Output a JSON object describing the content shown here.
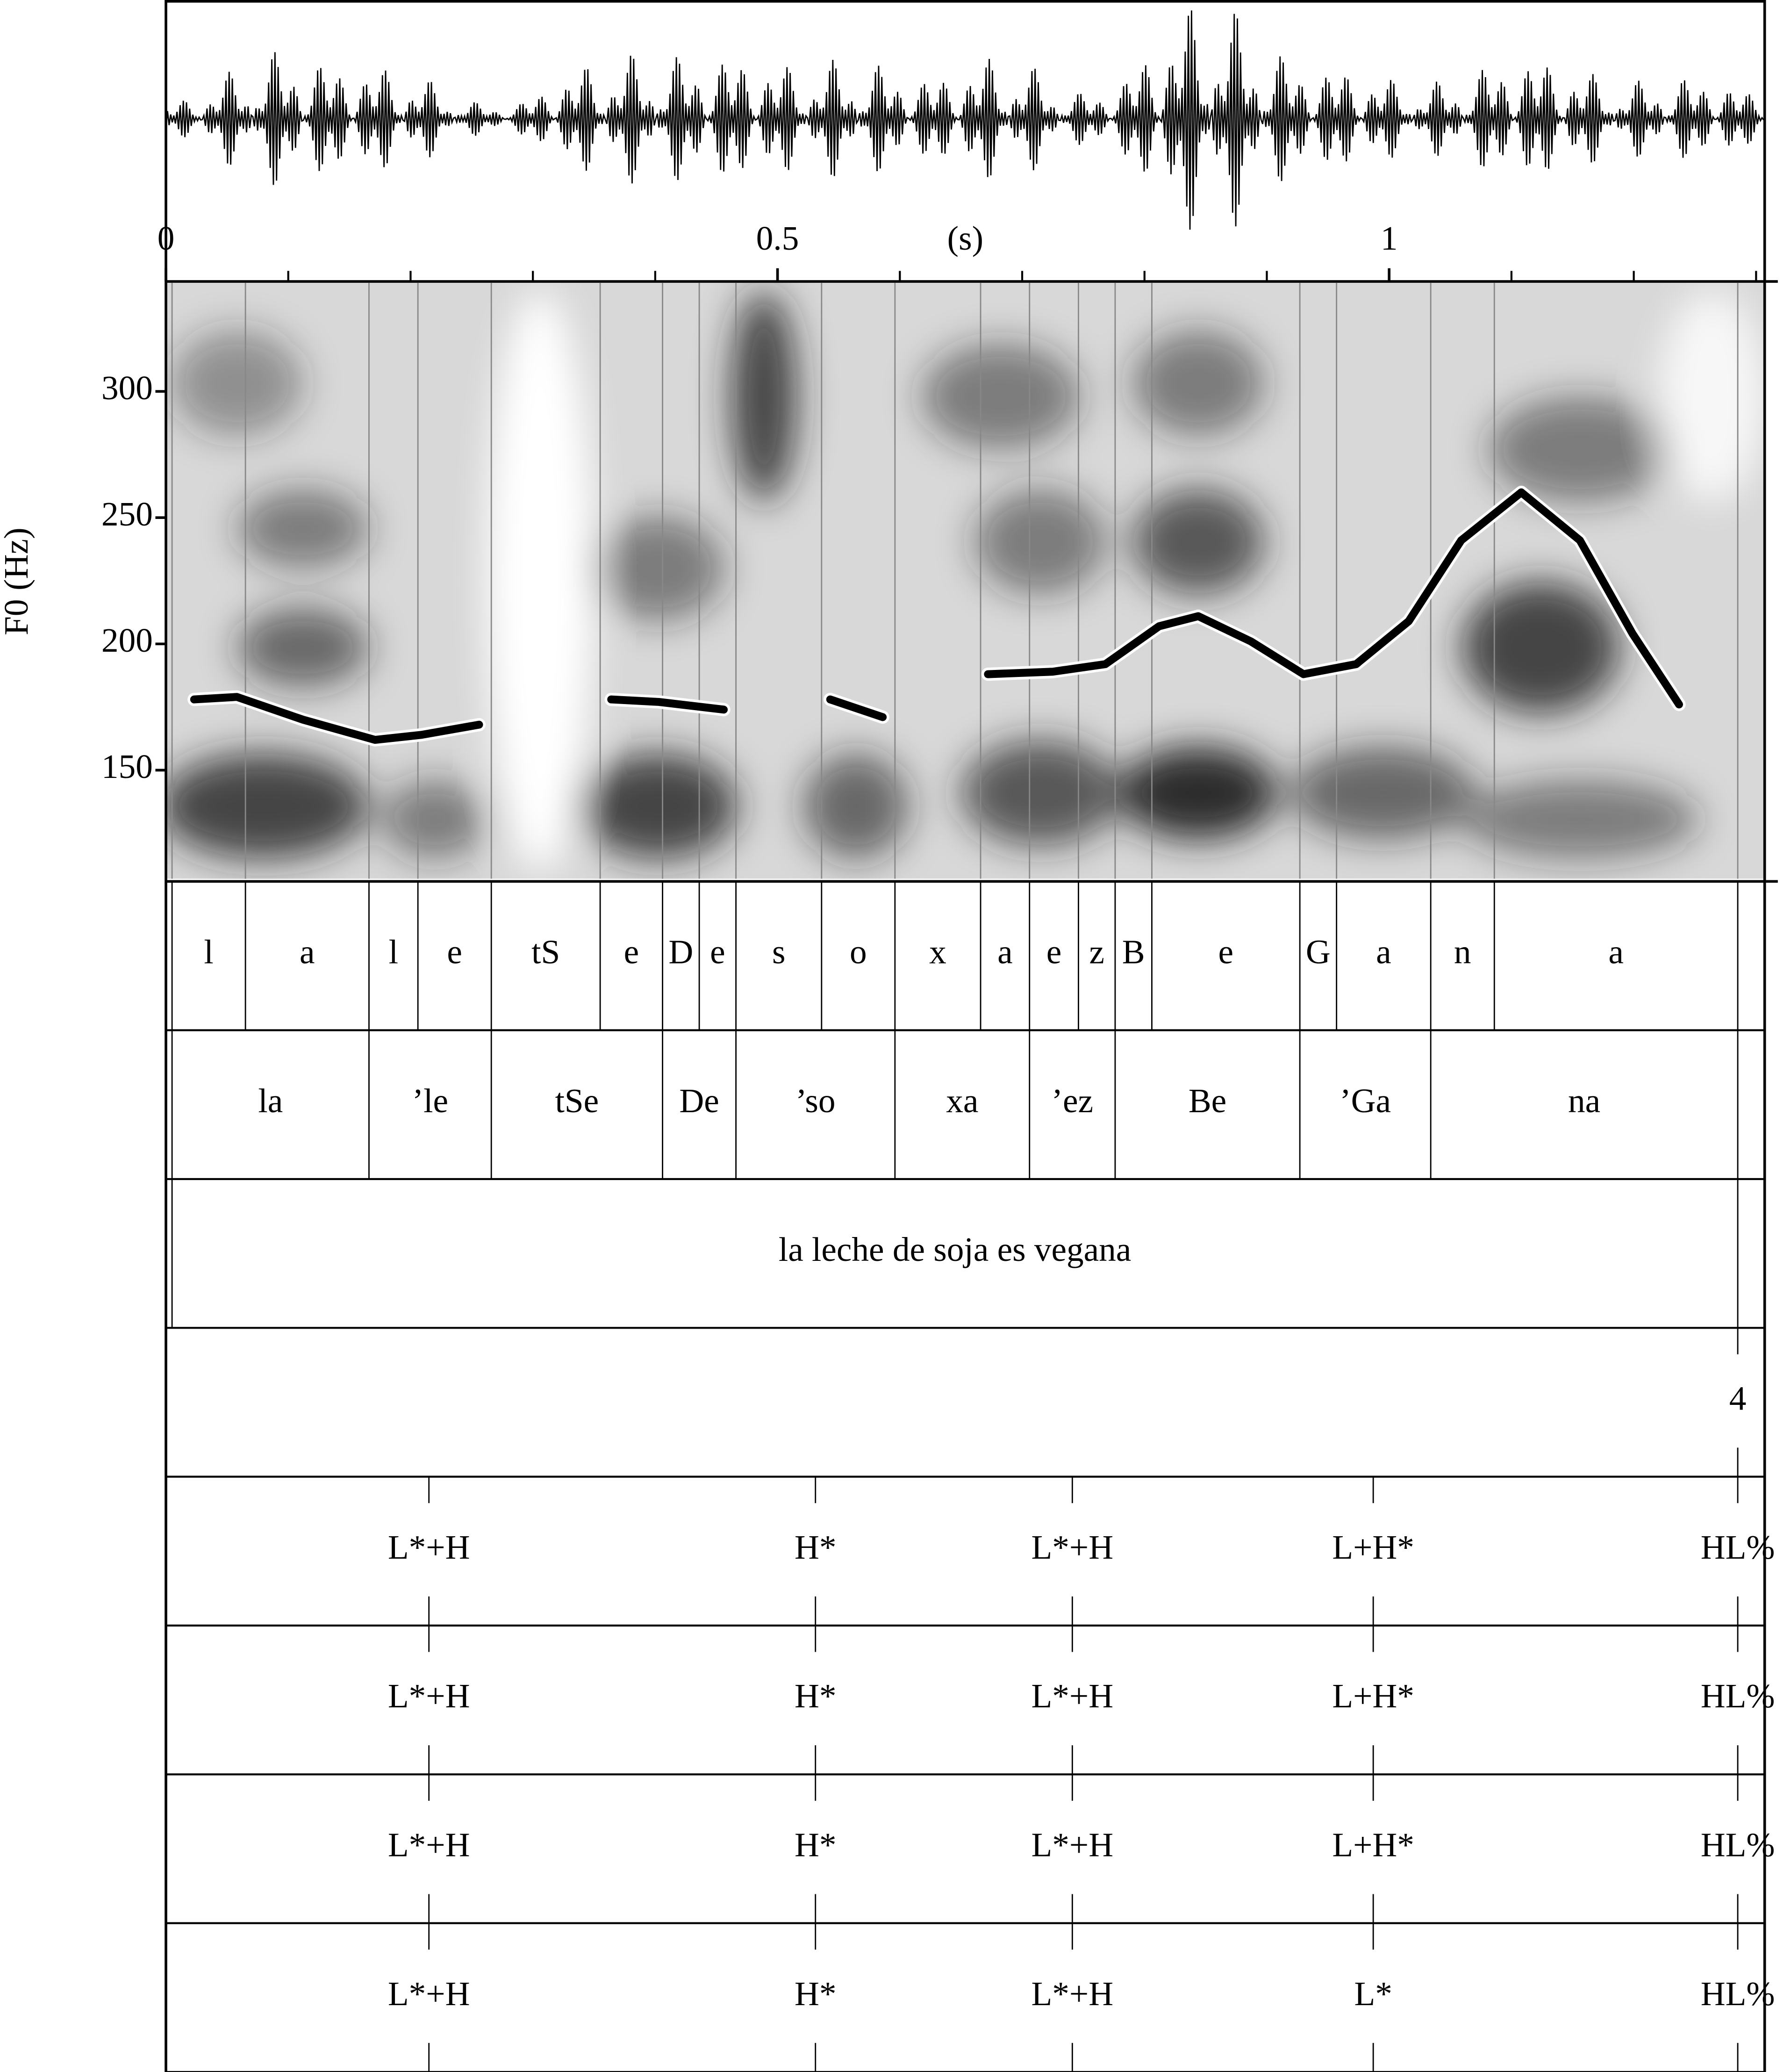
{
  "chart_data": {
    "type": "line",
    "x_label": "(s)",
    "y_label": "F0 (Hz)",
    "xlim": [
      0,
      1.307
    ],
    "xticks": [
      0,
      0.5,
      1
    ],
    "xminorticks": [
      0.1,
      0.2,
      0.3,
      0.4,
      0.6,
      0.7,
      0.8,
      0.9,
      1.1,
      1.2,
      1.3
    ],
    "ylim": [
      107,
      343
    ],
    "yticks": [
      150,
      200,
      250,
      300
    ],
    "x": [
      0.023,
      0.058,
      0.112,
      0.171,
      0.209,
      0.256,
      null,
      0.364,
      0.403,
      0.456,
      null,
      0.543,
      0.586,
      null,
      0.672,
      0.725,
      0.768,
      0.812,
      0.844,
      0.887,
      0.93,
      0.973,
      1.016,
      1.059,
      1.108,
      1.156,
      1.199,
      1.237
    ],
    "series": [
      {
        "name": "F0",
        "color": "#000000",
        "values": [
          178,
          179,
          170,
          162,
          164,
          168,
          null,
          178,
          177,
          174,
          null,
          178,
          171,
          null,
          188,
          189,
          192,
          207,
          211,
          201,
          188,
          192,
          209,
          241,
          260,
          241,
          204,
          176
        ]
      }
    ],
    "tiers": [
      {
        "boundaries": [
          0.005,
          0.065,
          0.166,
          0.206,
          0.266,
          0.355,
          0.406,
          0.436,
          0.466,
          0.536,
          0.596,
          0.666,
          0.706,
          0.746,
          0.776,
          0.806,
          0.927,
          0.957,
          1.034,
          1.086,
          1.285
        ],
        "labels": [
          "l",
          "a",
          "l",
          "e",
          "tS",
          "e",
          "D",
          "e",
          "s",
          "o",
          "x",
          "a",
          "e",
          "z",
          "B",
          "e",
          "G",
          "a",
          "n",
          "a"
        ]
      },
      {
        "boundaries": [
          0.005,
          0.166,
          0.266,
          0.406,
          0.466,
          0.596,
          0.706,
          0.776,
          0.927,
          1.034,
          1.285
        ],
        "labels": [
          "la",
          "’le",
          "tSe",
          "De",
          "’so",
          "xa",
          "’ez",
          "Be",
          "’Ga",
          "na"
        ]
      },
      {
        "boundaries": [
          0.005,
          1.285
        ],
        "labels": [
          "la leche de soja es vegana"
        ]
      },
      {
        "points": [
          1.285
        ],
        "labels": [
          "4"
        ]
      },
      {
        "points": [
          0.215,
          0.531,
          0.741,
          0.987,
          1.285
        ],
        "labels": [
          "L*+H",
          "H*",
          "L*+H",
          "L+H*",
          "HL%"
        ]
      },
      {
        "points": [
          0.215,
          0.531,
          0.741,
          0.987,
          1.285
        ],
        "labels": [
          "L*+H",
          "H*",
          "L*+H",
          "L+H*",
          "HL%"
        ]
      },
      {
        "points": [
          0.215,
          0.531,
          0.741,
          0.987,
          1.285
        ],
        "labels": [
          "L*+H",
          "H*",
          "L*+H",
          "L+H*",
          "HL%"
        ]
      },
      {
        "points": [
          0.215,
          0.531,
          0.741,
          0.987,
          1.285
        ],
        "labels": [
          "L*+H",
          "H*",
          "L*+H",
          "L*",
          "HL%"
        ]
      }
    ]
  }
}
